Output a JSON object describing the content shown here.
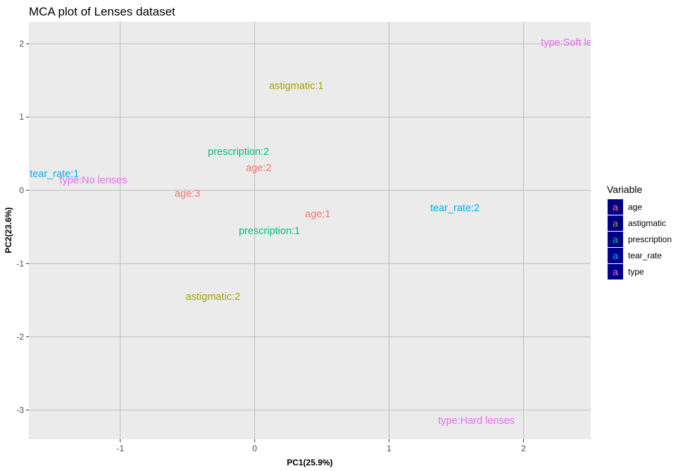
{
  "chart_data": {
    "type": "scatter",
    "title": "MCA plot of Lenses dataset",
    "xlabel": "PC1(25.9%)",
    "ylabel": "PC2(23.6%)",
    "xlim": [
      -1.68,
      2.5
    ],
    "ylim": [
      -3.4,
      2.3
    ],
    "xticks": [
      -1,
      0,
      1,
      2
    ],
    "yticks": [
      -3,
      -2,
      -1,
      0,
      1,
      2
    ],
    "grid": true,
    "legend": {
      "title": "Variable",
      "position": "right",
      "entries": [
        {
          "name": "age",
          "glyph": "a",
          "color": "#F8766D"
        },
        {
          "name": "astigmatic",
          "glyph": "a",
          "color": "#A3A500"
        },
        {
          "name": "prescription",
          "glyph": "a",
          "color": "#00BF7D"
        },
        {
          "name": "tear_rate",
          "glyph": "a",
          "color": "#00B0F6"
        },
        {
          "name": "type",
          "glyph": "a",
          "color": "#E76BF3"
        }
      ]
    },
    "points": [
      {
        "label": "age:1",
        "variable": "age",
        "x": 0.47,
        "y": -0.32
      },
      {
        "label": "age:2",
        "variable": "age",
        "x": 0.03,
        "y": 0.31
      },
      {
        "label": "age:3",
        "variable": "age",
        "x": -0.5,
        "y": -0.04
      },
      {
        "label": "astigmatic:1",
        "variable": "astigmatic",
        "x": 0.31,
        "y": 1.43
      },
      {
        "label": "astigmatic:2",
        "variable": "astigmatic",
        "x": -0.31,
        "y": -1.45
      },
      {
        "label": "prescription:1",
        "variable": "prescription",
        "x": 0.11,
        "y": -0.55
      },
      {
        "label": "prescription:2",
        "variable": "prescription",
        "x": -0.12,
        "y": 0.53
      },
      {
        "label": "tear_rate:1",
        "variable": "tear_rate",
        "x": -1.49,
        "y": 0.23
      },
      {
        "label": "tear_rate:2",
        "variable": "tear_rate",
        "x": 1.49,
        "y": -0.24
      },
      {
        "label": "type:No lenses",
        "variable": "type",
        "x": -1.2,
        "y": 0.14
      },
      {
        "label": "type:Soft lenses",
        "variable": "type",
        "x": 2.4,
        "y": 2.02
      },
      {
        "label": "type:Hard lenses",
        "variable": "type",
        "x": 1.65,
        "y": -3.14
      }
    ]
  },
  "colors": {
    "panel_background": "#EBEBEB",
    "grid_major": "#BEBEBE",
    "legend_key_background": "#00008B"
  }
}
